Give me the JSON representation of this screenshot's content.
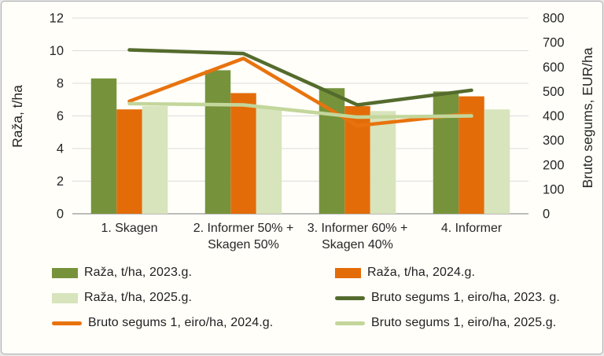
{
  "chart_data": {
    "type": "combo-bar-line",
    "title": "",
    "categories": [
      "1. Skagen",
      "2. Informer 50% + Skagen 50%",
      "3. Informer 60% + Skagen 40%",
      "4. Informer"
    ],
    "category_lines": [
      [
        "1. Skagen"
      ],
      [
        "2. Informer 50% +",
        "Skagen 50%"
      ],
      [
        "3. Informer 60% +",
        "Skagen 40%"
      ],
      [
        "4. Informer"
      ]
    ],
    "bar_series": [
      {
        "name": "Raža, t/ha, 2023.g.",
        "color": "#76933C",
        "axis": "left",
        "values": [
          8.3,
          8.8,
          7.7,
          7.5
        ]
      },
      {
        "name": "Raža, t/ha, 2024.g.",
        "color": "#E36C09",
        "axis": "left",
        "values": [
          6.4,
          7.4,
          6.6,
          7.2
        ]
      },
      {
        "name": "Raža, t/ha, 2025.g.",
        "color": "#D7E4BC",
        "axis": "left",
        "values": [
          6.6,
          6.5,
          6.3,
          6.4
        ]
      }
    ],
    "line_series": [
      {
        "name": "Bruto segums 1, eiro/ha, 2023. g.",
        "color": "#546B2D",
        "axis": "right",
        "values": [
          670,
          655,
          445,
          505
        ]
      },
      {
        "name": "Bruto segums 1, eiro/ha, 2024.g.",
        "color": "#E8730E",
        "axis": "right",
        "values": [
          460,
          635,
          360,
          410
        ]
      },
      {
        "name": "Bruto segums 1, eiro/ha, 2025.g.",
        "color": "#C3D69B",
        "axis": "right",
        "values": [
          450,
          445,
          395,
          400
        ]
      }
    ],
    "left_axis": {
      "label": "Raža, t/ha",
      "min": 0,
      "max": 12,
      "step": 2,
      "tick_labels": [
        "0",
        "2",
        "4",
        "6",
        "8",
        "10",
        "12"
      ]
    },
    "right_axis": {
      "label": "Bruto segums, EUR/ha",
      "min": 0,
      "max": 800,
      "step": 100,
      "tick_labels": [
        "0",
        "100",
        "200",
        "300",
        "400",
        "500",
        "600",
        "700",
        "800"
      ]
    },
    "grid": true,
    "legend_position": "bottom"
  },
  "legend": {
    "items": [
      {
        "label": "Raža, t/ha, 2023.g.",
        "marker": "bar",
        "color": "#76933C"
      },
      {
        "label": "Raža, t/ha, 2024.g.",
        "marker": "bar",
        "color": "#E36C09"
      },
      {
        "label": "Raža, t/ha, 2025.g.",
        "marker": "bar",
        "color": "#D7E4BC"
      },
      {
        "label": "Bruto segums 1, eiro/ha, 2023. g.",
        "marker": "line",
        "color": "#546B2D"
      },
      {
        "label": "Bruto segums 1, eiro/ha, 2024.g.",
        "marker": "line",
        "color": "#E8730E"
      },
      {
        "label": "Bruto segums 1, eiro/ha, 2025.g.",
        "marker": "line",
        "color": "#C3D69B"
      }
    ]
  },
  "colors": {
    "background": "#FFFEF9",
    "gridline": "#DCDCDC",
    "axis_line": "#A6A6A6",
    "text": "#262626"
  }
}
